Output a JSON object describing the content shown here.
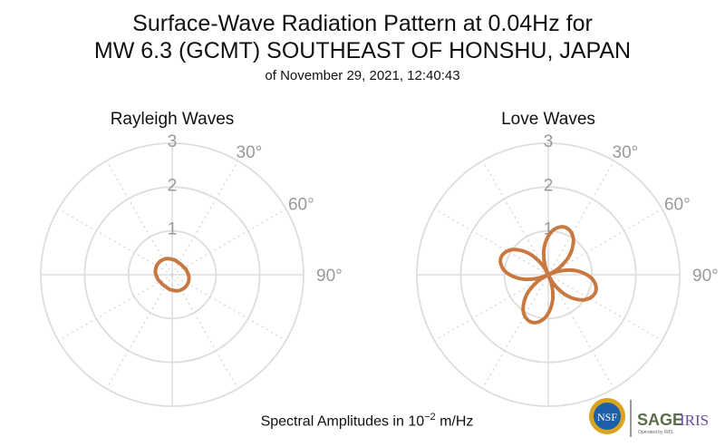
{
  "header": {
    "title_line1": "Surface-Wave Radiation Pattern at 0.04Hz for",
    "title_line2": "MW 6.3 (GCMT) SOUTHEAST OF HONSHU, JAPAN",
    "subtitle": "of November 29, 2021, 12:40:43"
  },
  "chart_data": [
    {
      "type": "polar-line",
      "title": "Rayleigh Waves",
      "radial_ticks": [
        "1",
        "2",
        "3"
      ],
      "rlim": [
        0,
        3
      ],
      "angular_ticks": [
        "30°",
        "60°",
        "90°"
      ],
      "theta_step_deg": 10,
      "r": [
        0.35,
        0.34,
        0.32,
        0.31,
        0.31,
        0.31,
        0.32,
        0.34,
        0.35,
        0.37,
        0.39,
        0.4,
        0.41,
        0.41,
        0.41,
        0.4,
        0.39,
        0.37,
        0.35,
        0.34,
        0.32,
        0.31,
        0.31,
        0.31,
        0.32,
        0.34,
        0.35,
        0.37,
        0.39,
        0.4,
        0.41,
        0.41,
        0.41,
        0.4,
        0.39,
        0.37
      ],
      "color": "#c87941"
    },
    {
      "type": "polar-line",
      "title": "Love Waves",
      "radial_ticks": [
        "1",
        "2",
        "3"
      ],
      "rlim": [
        0,
        3
      ],
      "angular_ticks": [
        "30°",
        "60°",
        "90°"
      ],
      "theta_step_deg": 5,
      "r": [
        0.88,
        1.0,
        1.08,
        1.13,
        1.15,
        1.13,
        1.08,
        1.0,
        0.88,
        0.74,
        0.58,
        0.39,
        0.2,
        0,
        0.2,
        0.39,
        0.58,
        0.74,
        0.88,
        1.0,
        1.08,
        1.13,
        1.15,
        1.13,
        1.08,
        1.0,
        0.88,
        0.74,
        0.58,
        0.39,
        0.2,
        0,
        0.2,
        0.39,
        0.58,
        0.74,
        0.88,
        1.0,
        1.08,
        1.13,
        1.15,
        1.13,
        1.08,
        1.0,
        0.88,
        0.74,
        0.58,
        0.39,
        0.2,
        0,
        0.2,
        0.39,
        0.58,
        0.74,
        0.88,
        1.0,
        1.08,
        1.13,
        1.15,
        1.13,
        1.08,
        1.0,
        0.88,
        0.74,
        0.58,
        0.39,
        0.2,
        0,
        0.2,
        0.39,
        0.58,
        0.74
      ],
      "color": "#c87941"
    }
  ],
  "footer": {
    "prefix": "Spectral Amplitudes in 10",
    "exponent": "−2",
    "unit": " m/Hz"
  },
  "logo": {
    "nsf": "NSF",
    "sage": "SAGE",
    "iris": "IRIS",
    "operated": "Operated by IRIS"
  }
}
